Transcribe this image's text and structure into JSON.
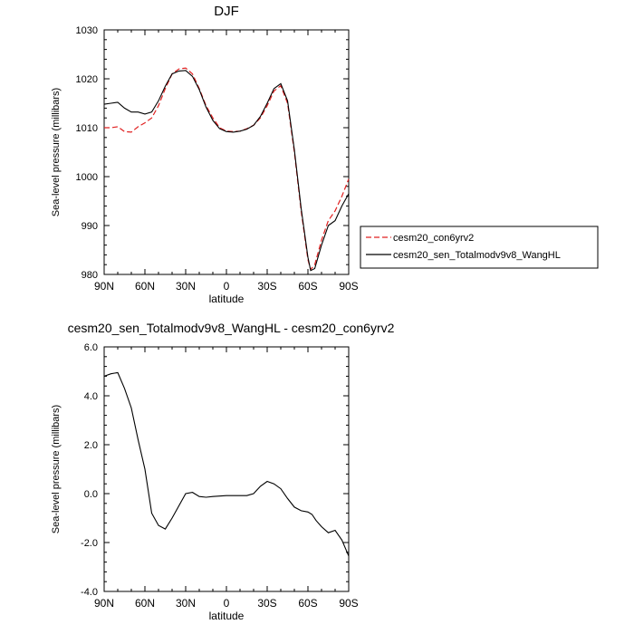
{
  "chart_data": [
    {
      "type": "line",
      "title": "DJF",
      "xlabel": "latitude",
      "ylabel": "Sea-level pressure (millibars)",
      "xlim": [
        90,
        -90
      ],
      "ylim": [
        980,
        1030
      ],
      "x_ticks": [
        90,
        60,
        30,
        0,
        -30,
        -60,
        -90
      ],
      "x_tick_labels": [
        "90N",
        "60N",
        "30N",
        "0",
        "30S",
        "60S",
        "90S"
      ],
      "y_ticks": [
        980,
        990,
        1000,
        1010,
        1020,
        1030
      ],
      "y_tick_labels": [
        "980",
        "990",
        "1000",
        "1010",
        "1020",
        "1030"
      ],
      "legend_position": "right",
      "series": [
        {
          "name": "cesm20_con6yrv2",
          "color": "#e02020",
          "style": "dashed",
          "x": [
            90,
            85,
            80,
            75,
            70,
            65,
            60,
            55,
            50,
            45,
            40,
            35,
            30,
            25,
            20,
            15,
            10,
            5,
            0,
            -5,
            -10,
            -15,
            -20,
            -25,
            -30,
            -35,
            -40,
            -45,
            -50,
            -55,
            -60,
            -62,
            -65,
            -70,
            -75,
            -80,
            -85,
            -90
          ],
          "y": [
            1010,
            1010,
            1010.2,
            1009.2,
            1009.1,
            1010.2,
            1011,
            1012,
            1014.5,
            1018,
            1021,
            1022,
            1022.2,
            1021,
            1018,
            1014.5,
            1012,
            1010,
            1009.3,
            1009.2,
            1009.3,
            1009.8,
            1010.5,
            1012,
            1014.5,
            1017.5,
            1018.6,
            1015,
            1005,
            993,
            983,
            981,
            982,
            987,
            991,
            993,
            996,
            999.5
          ]
        },
        {
          "name": "cesm20_sen_Totalmodv9v8_WangHL",
          "color": "#000000",
          "style": "solid",
          "x": [
            90,
            85,
            80,
            75,
            70,
            65,
            60,
            55,
            50,
            45,
            40,
            35,
            30,
            25,
            20,
            15,
            10,
            5,
            0,
            -5,
            -10,
            -15,
            -20,
            -25,
            -30,
            -35,
            -40,
            -45,
            -50,
            -55,
            -60,
            -62,
            -65,
            -70,
            -75,
            -80,
            -85,
            -90
          ],
          "y": [
            1014.8,
            1015,
            1015.2,
            1014,
            1013.2,
            1013.2,
            1012.8,
            1013.2,
            1015.5,
            1018.5,
            1021,
            1021.6,
            1021.7,
            1020.5,
            1017.8,
            1014.2,
            1011.5,
            1009.8,
            1009.2,
            1009.1,
            1009.3,
            1009.7,
            1010.5,
            1012.3,
            1015,
            1018,
            1019,
            1015.5,
            1005.5,
            993.5,
            983.5,
            980.8,
            981.2,
            986,
            990,
            991,
            994,
            996.5
          ]
        }
      ]
    },
    {
      "type": "line",
      "title": "cesm20_sen_Totalmodv9v8_WangHL - cesm20_con6yrv2",
      "xlabel": "latitude",
      "ylabel": "Sea-level pressure (millibars)",
      "xlim": [
        90,
        -90
      ],
      "ylim": [
        -4,
        6
      ],
      "x_ticks": [
        90,
        60,
        30,
        0,
        -30,
        -60,
        -90
      ],
      "x_tick_labels": [
        "90N",
        "60N",
        "30N",
        "0",
        "30S",
        "60S",
        "90S"
      ],
      "y_ticks": [
        -4,
        -2,
        0,
        2,
        4,
        6
      ],
      "y_tick_labels": [
        "-4.0",
        "-2.0",
        "0.0",
        "2.0",
        "4.0",
        "6.0"
      ],
      "series": [
        {
          "color": "#000000",
          "style": "solid",
          "x": [
            90,
            85,
            80,
            75,
            70,
            65,
            60,
            55,
            50,
            45,
            40,
            35,
            30,
            25,
            20,
            15,
            10,
            5,
            0,
            -5,
            -10,
            -15,
            -20,
            -25,
            -30,
            -35,
            -40,
            -45,
            -50,
            -55,
            -60,
            -63,
            -66,
            -70,
            -75,
            -80,
            -85,
            -90
          ],
          "y": [
            4.8,
            4.9,
            4.95,
            4.3,
            3.5,
            2.2,
            1.0,
            -0.8,
            -1.3,
            -1.45,
            -1.0,
            -0.5,
            0,
            0.05,
            -0.12,
            -0.15,
            -0.12,
            -0.1,
            -0.08,
            -0.08,
            -0.08,
            -0.08,
            0.0,
            0.3,
            0.5,
            0.4,
            0.2,
            -0.2,
            -0.55,
            -0.7,
            -0.75,
            -0.85,
            -1.1,
            -1.35,
            -1.6,
            -1.5,
            -1.9,
            -2.55
          ]
        }
      ]
    }
  ]
}
